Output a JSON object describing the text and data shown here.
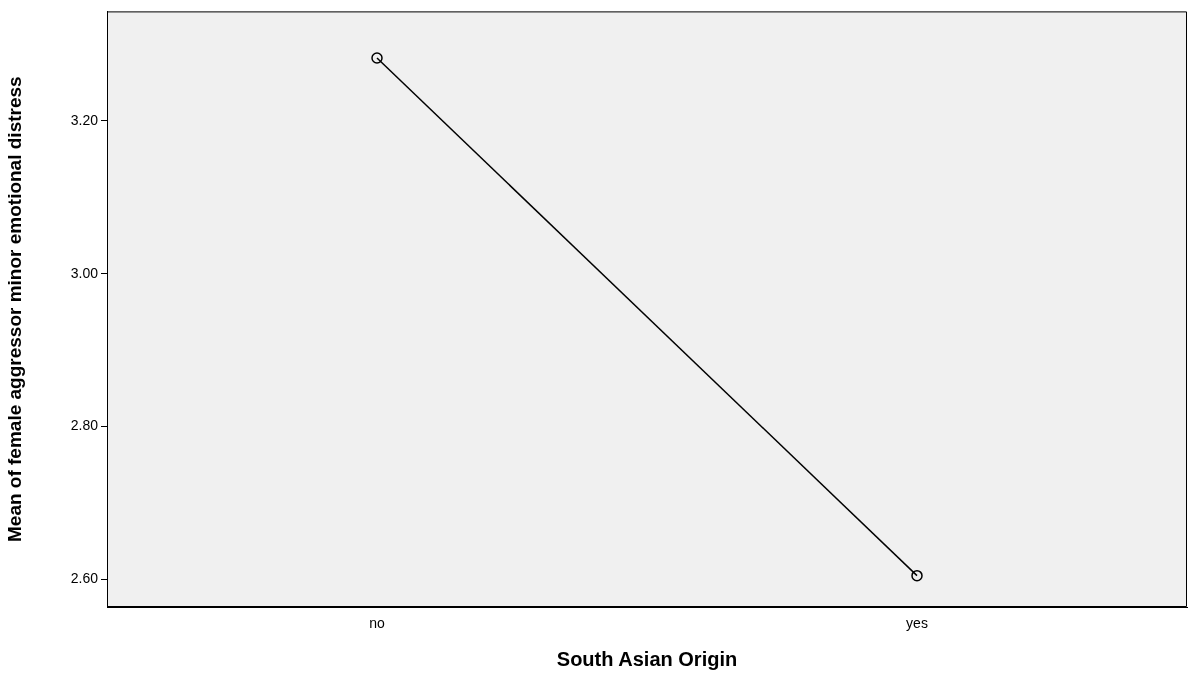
{
  "chart_data": {
    "type": "line",
    "xlabel": "South Asian Origin",
    "ylabel": "Mean of female aggressor minor emotional distress",
    "categories": [
      "no",
      "yes"
    ],
    "series": [
      {
        "color": "#000000",
        "values": [
          3.282,
          2.605
        ]
      }
    ],
    "ylim": [
      2.564,
      3.343
    ],
    "yticks": [
      {
        "value": 2.6,
        "label": "2.60"
      },
      {
        "value": 2.8,
        "label": "2.80"
      },
      {
        "value": 3.0,
        "label": "3.00"
      },
      {
        "value": 3.2,
        "label": "3.20"
      }
    ],
    "marker": "circle",
    "line_style": "solid",
    "grid": false,
    "legend": false
  }
}
